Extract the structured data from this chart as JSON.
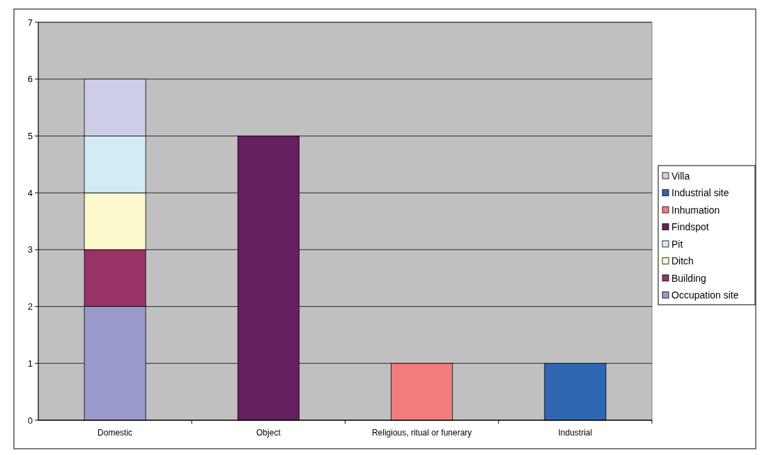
{
  "chart_data": {
    "type": "bar",
    "stacked": true,
    "categories": [
      "Domestic",
      "Object",
      "Religious, ritual or funerary",
      "Industrial"
    ],
    "series": [
      {
        "name": "Occupation site",
        "color": "#9999cc",
        "values": [
          2,
          null,
          null,
          null
        ]
      },
      {
        "name": "Building",
        "color": "#993366",
        "values": [
          1,
          null,
          null,
          null
        ]
      },
      {
        "name": "Ditch",
        "color": "#fcf9cc",
        "values": [
          1,
          null,
          null,
          null
        ]
      },
      {
        "name": "Pit",
        "color": "#d3ecf4",
        "values": [
          1,
          null,
          null,
          null
        ]
      },
      {
        "name": "Findspot",
        "color": "#661f5f",
        "values": [
          null,
          5,
          null,
          null
        ]
      },
      {
        "name": "Inhumation",
        "color": "#f27c7c",
        "values": [
          null,
          null,
          1,
          null
        ]
      },
      {
        "name": "Industrial site",
        "color": "#2e66b2",
        "values": [
          null,
          null,
          null,
          1
        ]
      },
      {
        "name": "Villa",
        "color": "#cdcde8",
        "values": [
          1,
          null,
          null,
          null
        ]
      }
    ],
    "ylim": [
      0,
      7
    ],
    "yticks": [
      0,
      1,
      2,
      3,
      4,
      5,
      6,
      7
    ],
    "grid": "y",
    "legend": "right"
  }
}
